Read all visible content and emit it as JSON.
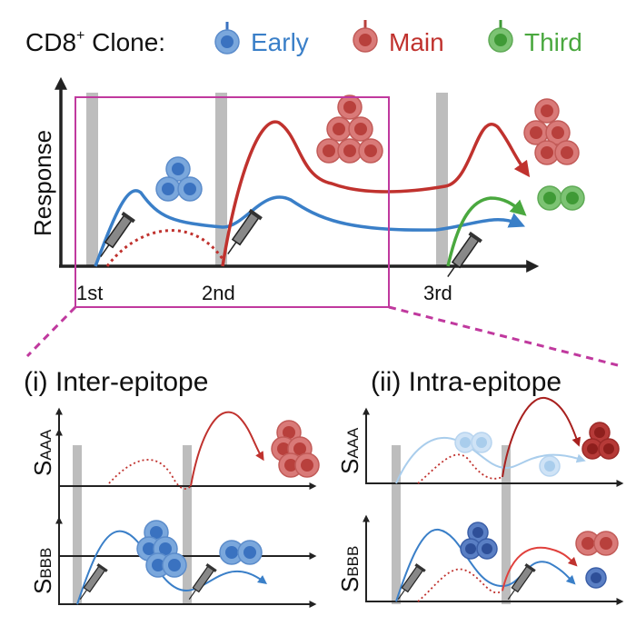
{
  "legend": {
    "prefix": "CD8",
    "superscript": "+",
    "suffix": " Clone:",
    "items": [
      {
        "label": "Early",
        "color": "#3a7fc8"
      },
      {
        "label": "Main",
        "color": "#c0322e"
      },
      {
        "label": "Third",
        "color": "#4aa83f"
      }
    ]
  },
  "top_plot": {
    "y_label": "Response",
    "ticks": [
      "1st",
      "2nd",
      "3rd"
    ]
  },
  "panels": [
    {
      "title": "(i) Inter-epitope",
      "y_labels": [
        {
          "main": "S",
          "sub": "AAA"
        },
        {
          "main": "S",
          "sub": "BBB"
        }
      ]
    },
    {
      "title": "(ii) Intra-epitope",
      "y_labels": [
        {
          "main": "S",
          "sub": "AAA"
        },
        {
          "main": "S",
          "sub": "BBB"
        }
      ]
    }
  ],
  "colors": {
    "highlight_box": "#c0399e",
    "bar": "#bdbdbd",
    "light_blue": "#a9cdec",
    "dark_red": "#a8201e",
    "dark_blue": "#3b5fa8"
  }
}
